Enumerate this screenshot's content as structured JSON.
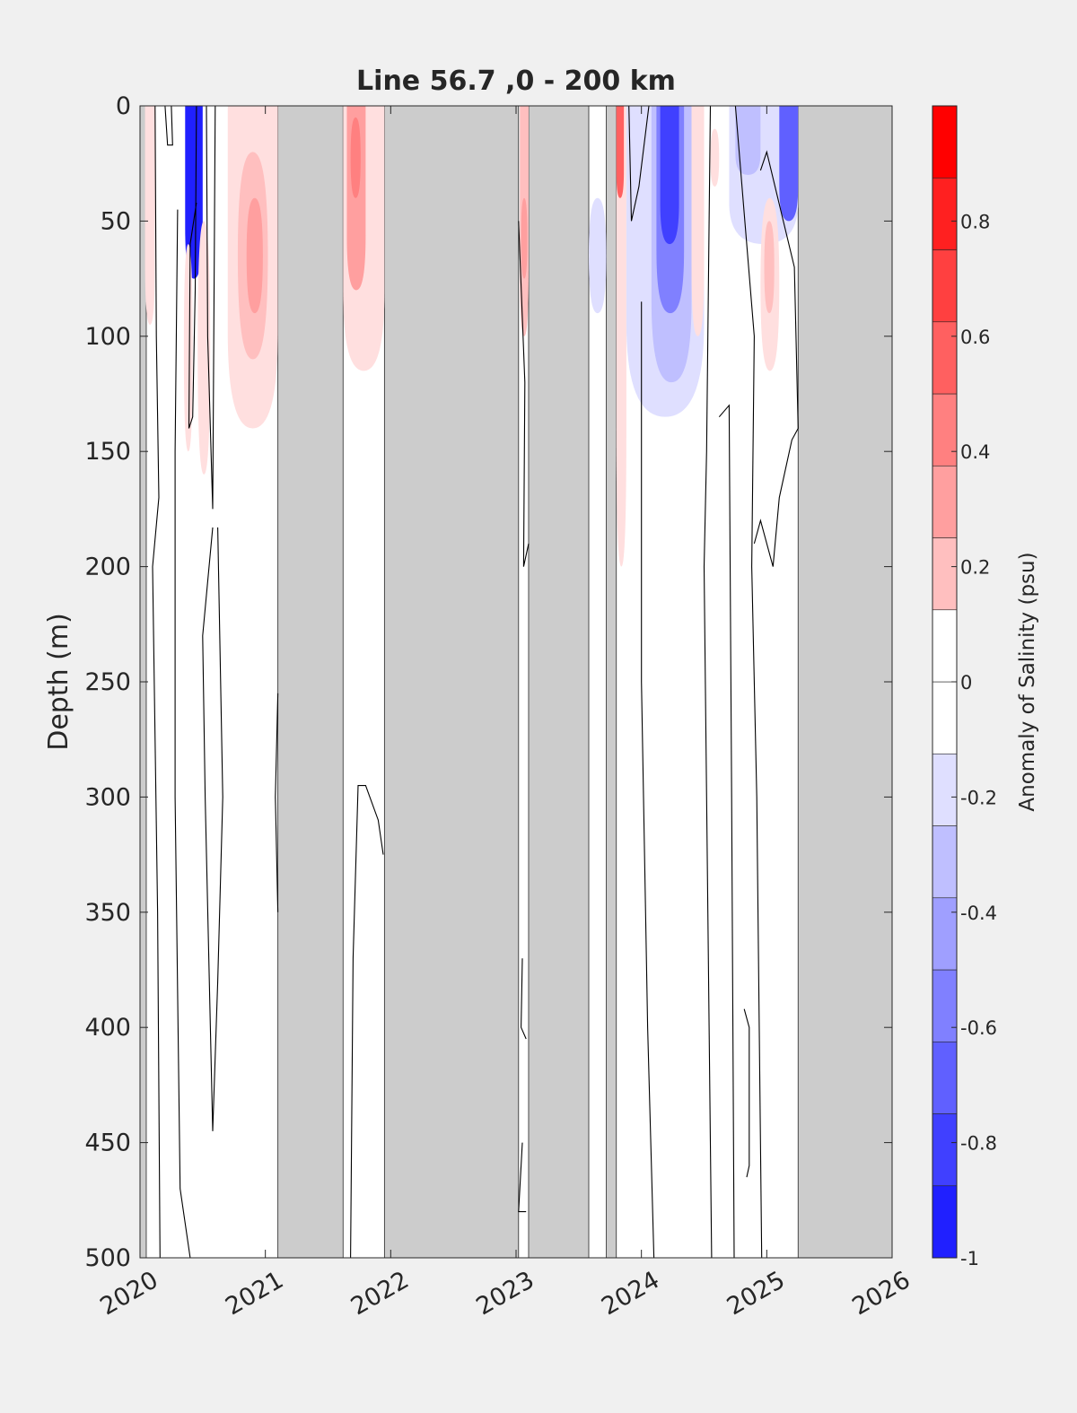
{
  "chart_data": {
    "type": "heatmap",
    "title": "Line 56.7 ,0 - 200 km",
    "ylabel": "Depth (m)",
    "colorbar_label": "Anomaly of Salinity (psu)",
    "x_ticks": [
      "2020",
      "2021",
      "2022",
      "2023",
      "2024",
      "2025",
      "2026"
    ],
    "y_ticks": [
      "0",
      "50",
      "100",
      "150",
      "200",
      "250",
      "300",
      "350",
      "400",
      "450",
      "500"
    ],
    "colorbar_ticks": [
      "-1",
      "-0.8",
      "-0.6",
      "-0.4",
      "-0.2",
      "0",
      "0.2",
      "0.4",
      "0.6",
      "0.8"
    ],
    "xlim": [
      2020,
      2026
    ],
    "ylim": [
      0,
      500
    ],
    "y_reversed": true,
    "clim": [
      -1,
      1
    ],
    "colormap": "blue-white-red",
    "colors": {
      "negative": "#0000ff",
      "neutral": "#ffffff",
      "positive": "#ff0000",
      "no_data": "#cccccc"
    },
    "no_data_periods": [
      [
        2020.0,
        2020.05
      ],
      [
        2021.1,
        2021.62
      ],
      [
        2021.95,
        2023.02
      ],
      [
        2023.1,
        2023.58
      ],
      [
        2023.72,
        2023.8
      ],
      [
        2025.25,
        2026.0
      ]
    ],
    "anomaly_patches": [
      {
        "x0": 2020.04,
        "x1": 2020.12,
        "d0": 0,
        "d1": 95,
        "value": 0.15
      },
      {
        "x0": 2020.36,
        "x1": 2020.5,
        "d0": 0,
        "d1": 75,
        "value": -0.9
      },
      {
        "x0": 2020.35,
        "x1": 2020.42,
        "d0": 60,
        "d1": 150,
        "value": 0.12
      },
      {
        "x0": 2020.46,
        "x1": 2020.56,
        "d0": 50,
        "d1": 160,
        "value": 0.12
      },
      {
        "x0": 2020.7,
        "x1": 2021.1,
        "d0": 0,
        "d1": 140,
        "value": 0.15
      },
      {
        "x0": 2020.78,
        "x1": 2021.02,
        "d0": 20,
        "d1": 110,
        "value": 0.3
      },
      {
        "x0": 2020.85,
        "x1": 2020.98,
        "d0": 40,
        "d1": 90,
        "value": 0.4
      },
      {
        "x0": 2021.62,
        "x1": 2021.95,
        "d0": 0,
        "d1": 115,
        "value": 0.15
      },
      {
        "x0": 2021.65,
        "x1": 2021.8,
        "d0": 0,
        "d1": 80,
        "value": 0.35
      },
      {
        "x0": 2021.68,
        "x1": 2021.76,
        "d0": 5,
        "d1": 40,
        "value": 0.5
      },
      {
        "x0": 2023.03,
        "x1": 2023.1,
        "d0": 0,
        "d1": 100,
        "value": 0.2
      },
      {
        "x0": 2023.04,
        "x1": 2023.09,
        "d0": 40,
        "d1": 75,
        "value": 0.35
      },
      {
        "x0": 2023.58,
        "x1": 2023.72,
        "d0": 40,
        "d1": 90,
        "value": -0.12
      },
      {
        "x0": 2023.8,
        "x1": 2023.88,
        "d0": 0,
        "d1": 200,
        "value": 0.15
      },
      {
        "x0": 2023.8,
        "x1": 2023.86,
        "d0": 0,
        "d1": 40,
        "value": 0.6
      },
      {
        "x0": 2023.88,
        "x1": 2024.5,
        "d0": 0,
        "d1": 135,
        "value": -0.12
      },
      {
        "x0": 2024.08,
        "x1": 2024.4,
        "d0": 0,
        "d1": 120,
        "value": -0.3
      },
      {
        "x0": 2024.12,
        "x1": 2024.34,
        "d0": 0,
        "d1": 90,
        "value": -0.55
      },
      {
        "x0": 2024.15,
        "x1": 2024.3,
        "d0": 0,
        "d1": 60,
        "value": -0.75
      },
      {
        "x0": 2024.4,
        "x1": 2024.5,
        "d0": 0,
        "d1": 100,
        "value": 0.15
      },
      {
        "x0": 2024.55,
        "x1": 2024.62,
        "d0": 10,
        "d1": 35,
        "value": 0.15
      },
      {
        "x0": 2024.7,
        "x1": 2025.25,
        "d0": 0,
        "d1": 60,
        "value": -0.12
      },
      {
        "x0": 2024.75,
        "x1": 2024.95,
        "d0": 0,
        "d1": 30,
        "value": -0.25
      },
      {
        "x0": 2025.1,
        "x1": 2025.25,
        "d0": 0,
        "d1": 50,
        "value": -0.6
      },
      {
        "x0": 2024.95,
        "x1": 2025.1,
        "d0": 40,
        "d1": 115,
        "value": 0.15
      },
      {
        "x0": 2024.98,
        "x1": 2025.06,
        "d0": 50,
        "d1": 90,
        "value": 0.3
      }
    ],
    "zero_contours": [
      [
        [
          2020.12,
          0
        ],
        [
          2020.13,
          100
        ],
        [
          2020.15,
          170
        ],
        [
          2020.1,
          200
        ],
        [
          2020.14,
          350
        ],
        [
          2020.16,
          500
        ]
      ],
      [
        [
          2020.2,
          0
        ],
        [
          2020.22,
          17
        ],
        [
          2020.26,
          17
        ],
        [
          2020.25,
          0
        ]
      ],
      [
        [
          2020.3,
          45
        ],
        [
          2020.28,
          150
        ],
        [
          2020.28,
          300
        ],
        [
          2020.32,
          470
        ],
        [
          2020.4,
          500
        ]
      ],
      [
        [
          2020.45,
          0
        ],
        [
          2020.44,
          80
        ],
        [
          2020.42,
          135
        ],
        [
          2020.39,
          140
        ],
        [
          2020.4,
          60
        ],
        [
          2020.45,
          42
        ]
      ],
      [
        [
          2020.53,
          0
        ],
        [
          2020.54,
          100
        ],
        [
          2020.58,
          175
        ],
        [
          2020.6,
          0
        ]
      ],
      [
        [
          2020.58,
          183
        ],
        [
          2020.5,
          230
        ],
        [
          2020.52,
          300
        ],
        [
          2020.58,
          445
        ],
        [
          2020.62,
          380
        ],
        [
          2020.66,
          300
        ],
        [
          2020.62,
          183
        ]
      ],
      [
        [
          2021.1,
          255
        ],
        [
          2021.08,
          300
        ],
        [
          2021.1,
          350
        ]
      ],
      [
        [
          2021.68,
          500
        ],
        [
          2021.7,
          370
        ],
        [
          2021.74,
          295
        ],
        [
          2021.8,
          295
        ],
        [
          2021.9,
          310
        ],
        [
          2021.94,
          325
        ]
      ],
      [
        [
          2023.02,
          50
        ],
        [
          2023.07,
          120
        ],
        [
          2023.06,
          200
        ],
        [
          2023.1,
          190
        ]
      ],
      [
        [
          2023.05,
          370
        ],
        [
          2023.04,
          400
        ],
        [
          2023.08,
          405
        ]
      ],
      [
        [
          2023.05,
          450
        ],
        [
          2023.02,
          480
        ],
        [
          2023.08,
          480
        ]
      ],
      [
        [
          2023.9,
          0
        ],
        [
          2023.92,
          50
        ],
        [
          2023.98,
          35
        ],
        [
          2024.06,
          0
        ]
      ],
      [
        [
          2024.0,
          85
        ],
        [
          2024.0,
          200
        ],
        [
          2024.0,
          250
        ],
        [
          2024.05,
          400
        ],
        [
          2024.1,
          500
        ]
      ],
      [
        [
          2024.55,
          0
        ],
        [
          2024.52,
          150
        ],
        [
          2024.5,
          200
        ],
        [
          2024.52,
          300
        ],
        [
          2024.56,
          500
        ]
      ],
      [
        [
          2024.62,
          135
        ],
        [
          2024.7,
          130
        ],
        [
          2024.72,
          300
        ],
        [
          2024.74,
          500
        ]
      ],
      [
        [
          2024.75,
          0
        ],
        [
          2024.9,
          100
        ],
        [
          2024.88,
          200
        ],
        [
          2024.92,
          300
        ],
        [
          2024.96,
          500
        ]
      ],
      [
        [
          2024.9,
          190
        ],
        [
          2024.95,
          180
        ],
        [
          2025.05,
          200
        ],
        [
          2025.1,
          170
        ],
        [
          2025.2,
          145
        ],
        [
          2025.25,
          140
        ],
        [
          2025.22,
          70
        ],
        [
          2025.0,
          20
        ],
        [
          2024.95,
          28
        ]
      ],
      [
        [
          2024.82,
          392
        ],
        [
          2024.86,
          400
        ],
        [
          2024.86,
          460
        ],
        [
          2024.84,
          465
        ]
      ]
    ]
  }
}
